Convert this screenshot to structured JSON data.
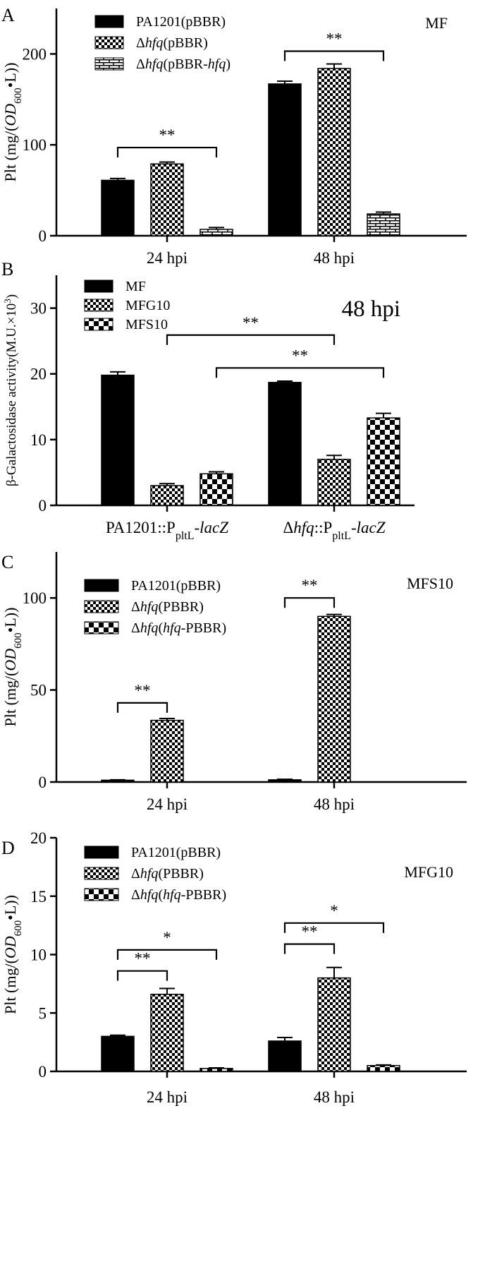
{
  "chart_data": [
    {
      "panel_letter": "A",
      "type": "bar",
      "ylabel_pre": "Plt (mg/(",
      "ylabel_od": "OD",
      "ylabel_sub": "600",
      "ylabel_post": "•L))",
      "condition": "MF",
      "categories": [
        "24 hpi",
        "48 hpi"
      ],
      "ylim": [
        0,
        250
      ],
      "yticks": [
        0,
        100,
        200
      ],
      "series": [
        {
          "name": "PA1201(pBBR)",
          "legend_parts": [
            {
              "t": "PA1201(pBBR)",
              "i": false
            }
          ],
          "pattern": "solid",
          "values": [
            61,
            167
          ],
          "errors": [
            2,
            3
          ]
        },
        {
          "name": "Δhfq(pBBR)",
          "legend_parts": [
            {
              "t": "Δ",
              "i": false
            },
            {
              "t": "hfq",
              "i": true
            },
            {
              "t": "(pBBR)",
              "i": false
            }
          ],
          "pattern": "check",
          "values": [
            79,
            184
          ],
          "errors": [
            2,
            5
          ]
        },
        {
          "name": "Δhfq(pBBR-hfq)",
          "legend_parts": [
            {
              "t": "Δ",
              "i": false
            },
            {
              "t": "hfq",
              "i": true
            },
            {
              "t": "(pBBR-",
              "i": false
            },
            {
              "t": "hfq",
              "i": true
            },
            {
              "t": ")",
              "i": false
            }
          ],
          "pattern": "brick",
          "values": [
            7,
            24
          ],
          "errors": [
            2,
            2
          ]
        }
      ],
      "significance": [
        {
          "label": "**",
          "group": 0,
          "from": 0,
          "to": 2,
          "y": 97
        },
        {
          "label": "**",
          "group": 1,
          "from": 0,
          "to": 2,
          "y": 203
        }
      ]
    },
    {
      "panel_letter": "B",
      "type": "bar",
      "ylabel_pre": "β-Galactosidase activity(M.U.×10",
      "ylabel_sup": "3",
      "ylabel_post": ")",
      "condition": "48 hpi",
      "categories": [
        "PA1201::PpltL-lacZ",
        "Δhfq::PpltL-lacZ"
      ],
      "category_parts": [
        [
          {
            "t": "PA1201::P",
            "i": false
          },
          {
            "t": "pltL",
            "sub": true
          },
          {
            "t": "-",
            "i": false
          },
          {
            "t": "lacZ",
            "i": true
          }
        ],
        [
          {
            "t": "Δ",
            "i": false
          },
          {
            "t": "hfq",
            "i": true
          },
          {
            "t": "::P",
            "i": false
          },
          {
            "t": "pltL",
            "sub": true
          },
          {
            "t": "-",
            "i": false
          },
          {
            "t": "lacZ",
            "i": true
          }
        ]
      ],
      "ylim": [
        0,
        35
      ],
      "yticks": [
        0,
        10,
        20,
        30
      ],
      "series": [
        {
          "name": "MF",
          "legend_parts": [
            {
              "t": "MF",
              "i": false
            }
          ],
          "pattern": "solid",
          "values": [
            19.8,
            18.7
          ],
          "errors": [
            0.5,
            0.2
          ]
        },
        {
          "name": "MFG10",
          "legend_parts": [
            {
              "t": "MFG10",
              "i": false
            }
          ],
          "pattern": "check",
          "values": [
            3.0,
            7.0
          ],
          "errors": [
            0.3,
            0.6
          ]
        },
        {
          "name": "MFS10",
          "legend_parts": [
            {
              "t": "MFS10",
              "i": false
            }
          ],
          "pattern": "bigcheck",
          "values": [
            4.8,
            13.3
          ],
          "errors": [
            0.3,
            0.7
          ]
        }
      ],
      "significance": [
        {
          "label": "**",
          "span": [
            [
              0,
              1
            ],
            [
              1,
              1
            ]
          ],
          "y": 25.9
        },
        {
          "label": "**",
          "span": [
            [
              0,
              2
            ],
            [
              1,
              2
            ]
          ],
          "y": 20.9
        }
      ]
    },
    {
      "panel_letter": "C",
      "type": "bar",
      "ylabel_pre": "Plt (mg/(",
      "ylabel_od": "OD",
      "ylabel_sub": "600",
      "ylabel_post": "•L))",
      "condition": "MFS10",
      "categories": [
        "24 hpi",
        "48 hpi"
      ],
      "ylim": [
        0,
        125
      ],
      "yticks": [
        0,
        50,
        100
      ],
      "series": [
        {
          "name": "PA1201(pBBR)",
          "legend_parts": [
            {
              "t": "PA1201(pBBR)",
              "i": false
            }
          ],
          "pattern": "solid",
          "values": [
            1.0,
            1.2
          ],
          "errors": [
            0.2,
            0.3
          ]
        },
        {
          "name": "Δhfq(PBBR)",
          "legend_parts": [
            {
              "t": "Δ",
              "i": false
            },
            {
              "t": "hfq",
              "i": true
            },
            {
              "t": "(PBBR)",
              "i": false
            }
          ],
          "pattern": "check",
          "values": [
            33.5,
            90.0
          ],
          "errors": [
            1,
            1
          ]
        },
        {
          "name": "Δhfq(hfq-PBBR)",
          "legend_parts": [
            {
              "t": "Δ",
              "i": false
            },
            {
              "t": "hfq",
              "i": true
            },
            {
              "t": "(",
              "i": false
            },
            {
              "t": "hfq",
              "i": true
            },
            {
              "t": "-PBBR)",
              "i": false
            }
          ],
          "pattern": "bigcheck",
          "values": [
            0,
            0
          ],
          "errors": [
            0,
            0
          ]
        }
      ],
      "significance": [
        {
          "label": "**",
          "group": 0,
          "from": 0,
          "to": 1,
          "y": 43
        },
        {
          "label": "**",
          "group": 1,
          "from": 0,
          "to": 1,
          "y": 100
        }
      ]
    },
    {
      "panel_letter": "D",
      "type": "bar",
      "ylabel_pre": "Plt (mg/(",
      "ylabel_od": "OD",
      "ylabel_sub": "600",
      "ylabel_post": "•L))",
      "condition": "MFG10",
      "categories": [
        "24 hpi",
        "48 hpi"
      ],
      "ylim": [
        0,
        20
      ],
      "yticks": [
        0,
        5,
        10,
        15,
        20
      ],
      "series": [
        {
          "name": "PA1201(pBBR)",
          "legend_parts": [
            {
              "t": "PA1201(pBBR)",
              "i": false
            }
          ],
          "pattern": "solid",
          "values": [
            3.0,
            2.6
          ],
          "errors": [
            0.1,
            0.3
          ]
        },
        {
          "name": "Δhfq(PBBR)",
          "legend_parts": [
            {
              "t": "Δ",
              "i": false
            },
            {
              "t": "hfq",
              "i": true
            },
            {
              "t": "(PBBR)",
              "i": false
            }
          ],
          "pattern": "check",
          "values": [
            6.6,
            8.0
          ],
          "errors": [
            0.5,
            0.9
          ]
        },
        {
          "name": "Δhfq(hfq-PBBR)",
          "legend_parts": [
            {
              "t": "Δ",
              "i": false
            },
            {
              "t": "hfq",
              "i": true
            },
            {
              "t": "(",
              "i": false
            },
            {
              "t": "hfq",
              "i": true
            },
            {
              "t": "-PBBR)",
              "i": false
            }
          ],
          "pattern": "bigcheck",
          "values": [
            0.25,
            0.5
          ],
          "errors": [
            0.05,
            0.05
          ]
        }
      ],
      "significance": [
        {
          "label": "**",
          "group": 0,
          "from": 0,
          "to": 1,
          "y": 8.6
        },
        {
          "label": "*",
          "group": 0,
          "from": 0,
          "to": 2,
          "y": 10.4
        },
        {
          "label": "**",
          "group": 1,
          "from": 0,
          "to": 1,
          "y": 10.9
        },
        {
          "label": "*",
          "group": 1,
          "from": 0,
          "to": 2,
          "y": 12.7
        }
      ]
    }
  ]
}
